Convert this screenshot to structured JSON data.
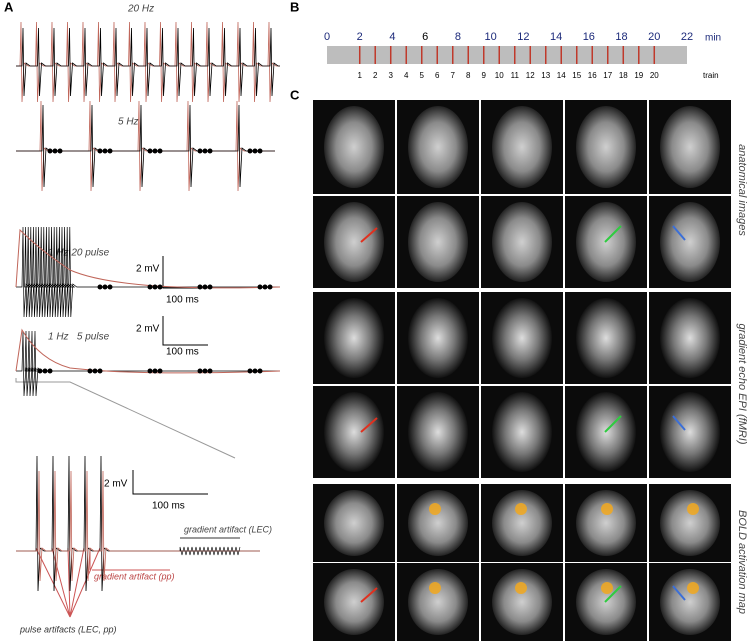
{
  "panel_labels": [
    "A",
    "B",
    "C"
  ],
  "panel_a": {
    "trace_labels": [
      "20 Hz",
      "5 Hz",
      "1 Hz 20 pulse",
      "1 Hz   5 pulse"
    ],
    "scale_bars": [
      {
        "amplitude": "2 mV",
        "time": "100 ms"
      },
      {
        "amplitude": "2 mV",
        "time": "100 ms"
      },
      {
        "amplitude": "2 mV",
        "time": "100 ms"
      }
    ],
    "annotations": [
      "gradient artifact (LEC)",
      "gradient artifact (pp)",
      "pulse artifacts (LEC, pp)"
    ]
  },
  "panel_b": {
    "minutes": [
      0,
      2,
      4,
      6,
      8,
      10,
      12,
      14,
      16,
      18,
      20,
      22
    ],
    "unit": "min",
    "trains": [
      1,
      2,
      3,
      4,
      5,
      6,
      7,
      8,
      9,
      10,
      11,
      12,
      13,
      14,
      15,
      16,
      17,
      18,
      19,
      20
    ],
    "train_label": "train"
  },
  "panel_c": {
    "row_labels": [
      "anatomical images",
      "gradient echo EPI (fMRI)",
      "BOLD activation map"
    ]
  }
}
